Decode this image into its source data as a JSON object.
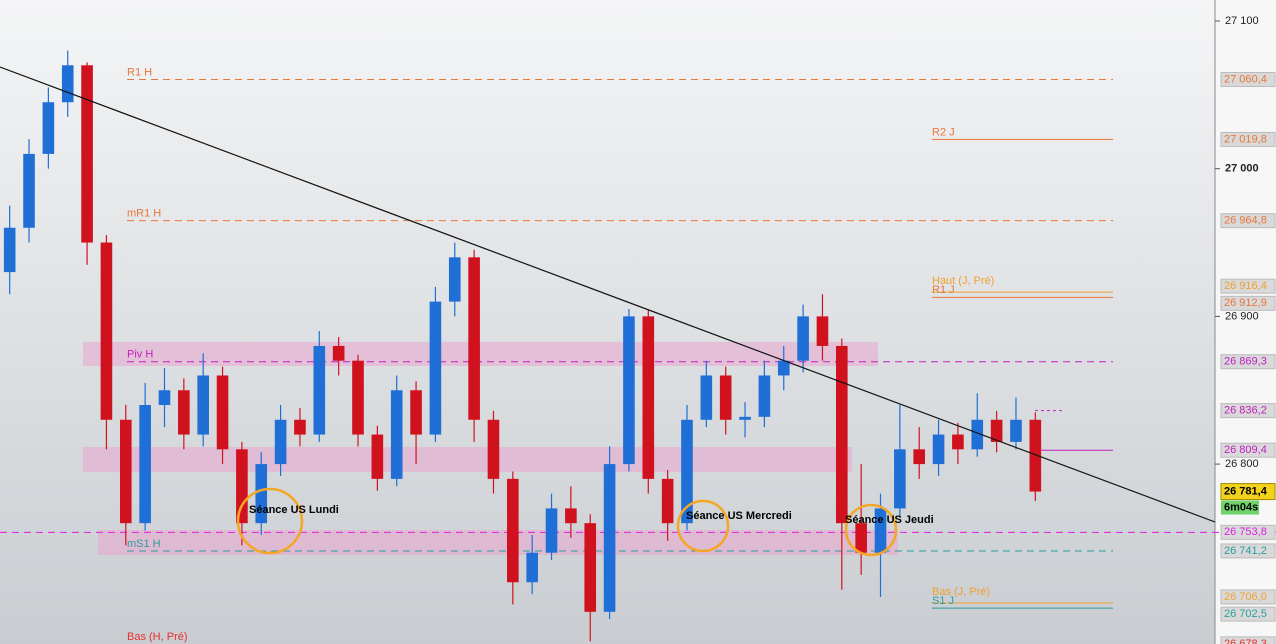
{
  "chart_data": {
    "type": "candlestick",
    "ylim": [
      26678.2,
      27114.2
    ],
    "yticks": [
      {
        "value": 27100,
        "label": "27 100"
      },
      {
        "value": 27000,
        "label": "27 000"
      },
      {
        "value": 26900,
        "label": "26 900"
      },
      {
        "value": 26800,
        "label": "26 800"
      }
    ],
    "up_color": "#1f6fd6",
    "down_color": "#d0121f",
    "open": [
      26930,
      26960,
      27010,
      27045,
      27070,
      26950,
      26830,
      26760,
      26840,
      26850,
      26820,
      26860,
      26810,
      26760,
      26800,
      26830,
      26820,
      26880,
      26870,
      26820,
      26790,
      26850,
      26820,
      26910,
      26940,
      26830,
      26790,
      26720,
      26740,
      26770,
      26760,
      26700,
      26800,
      26900,
      26790,
      26760,
      26830,
      26860,
      26830,
      26832,
      26860,
      26870,
      26900,
      26880,
      26760,
      26740,
      26770,
      26810,
      26800,
      26820,
      26810,
      26830,
      26815,
      26830
    ],
    "high": [
      26975,
      27020,
      27055,
      27080,
      27072,
      26955,
      26840,
      26855,
      26865,
      26858,
      26875,
      26866,
      26815,
      26808,
      26840,
      26838,
      26890,
      26886,
      26874,
      26826,
      26860,
      26856,
      26920,
      26950,
      26945,
      26836,
      26795,
      26752,
      26780,
      26785,
      26766,
      26812,
      26905,
      26904,
      26796,
      26840,
      26870,
      26866,
      26842,
      26870,
      26880,
      26908,
      26915,
      26885,
      26800,
      26780,
      26840,
      26825,
      26830,
      26828,
      26848,
      26836,
      26845,
      26835
    ],
    "low": [
      26915,
      26950,
      27000,
      27035,
      26935,
      26810,
      26745,
      26755,
      26825,
      26810,
      26812,
      26800,
      26745,
      26752,
      26792,
      26812,
      26815,
      26860,
      26812,
      26782,
      26785,
      26800,
      26815,
      26900,
      26815,
      26780,
      26705,
      26712,
      26735,
      26750,
      26680,
      26695,
      26795,
      26780,
      26748,
      26755,
      26825,
      26820,
      26818,
      26825,
      26850,
      26862,
      26870,
      26715,
      26725,
      26710,
      26765,
      26790,
      26792,
      26800,
      26805,
      26808,
      26810,
      26775
    ],
    "close": [
      26960,
      27010,
      27045,
      27070,
      26950,
      26830,
      26760,
      26840,
      26850,
      26820,
      26860,
      26810,
      26760,
      26800,
      26830,
      26820,
      26880,
      26870,
      26820,
      26790,
      26850,
      26820,
      26910,
      26940,
      26830,
      26790,
      26720,
      26740,
      26770,
      26760,
      26700,
      26800,
      26900,
      26790,
      26760,
      26830,
      26860,
      26830,
      26832,
      26860,
      26870,
      26900,
      26880,
      26760,
      26740,
      26770,
      26810,
      26800,
      26820,
      26810,
      26830,
      26815,
      26830,
      26781.4
    ],
    "levels": [
      {
        "name": "R1 H",
        "value": 27060.4,
        "label": "27 060,4",
        "color": "#e8773a",
        "style": "dashed"
      },
      {
        "name": "R2 J",
        "value": 27019.8,
        "label": "27 019,8",
        "color": "#e8773a",
        "style": "solid"
      },
      {
        "name": "mR1 H",
        "value": 26964.8,
        "label": "26 964,8",
        "color": "#e8773a",
        "style": "dashed"
      },
      {
        "name": "Haut (J, Pré)",
        "value": 26916.4,
        "label": "26 916,4",
        "color": "#f0a030",
        "style": "solid"
      },
      {
        "name": "R1 J",
        "value": 26912.9,
        "label": "26 912,9",
        "color": "#e8773a",
        "style": "solid"
      },
      {
        "name": "Piv H",
        "value": 26869.3,
        "label": "26 869,3",
        "color": "#c020c0",
        "style": "dashed"
      },
      {
        "name": "mS1 H",
        "value": 26741.2,
        "label": "26 741,2",
        "color": "#2a9d9d",
        "style": "dashed"
      },
      {
        "name": "Bas (J, Pré)",
        "value": 26706.0,
        "label": "26 706,0",
        "color": "#f0a030",
        "style": "solid"
      },
      {
        "name": "S1 J",
        "value": 26702.5,
        "label": "26 702,5",
        "color": "#2a9d9d",
        "style": "solid"
      },
      {
        "name": "Bas (H, Pré)",
        "value": 26678.3,
        "label": "26 678,3",
        "color": "#e83030",
        "style": "none"
      }
    ],
    "markers": [
      {
        "value": 26836.2,
        "label": "26 836,2",
        "color": "#c020c0",
        "style": "dotted"
      },
      {
        "value": 26809.4,
        "label": "26 809,4",
        "color": "#c020c0",
        "style": "solid"
      },
      {
        "value": 26753.8,
        "label": "26 753,8",
        "color": "#e020e0",
        "style": "dashed"
      }
    ],
    "last": {
      "value": 26781.4,
      "label": "26 781,4",
      "timer": "6m04s"
    },
    "annotations": [
      "Séance US Lundi",
      "Séance US Mercredi",
      "Séance US Jeudi"
    ]
  }
}
